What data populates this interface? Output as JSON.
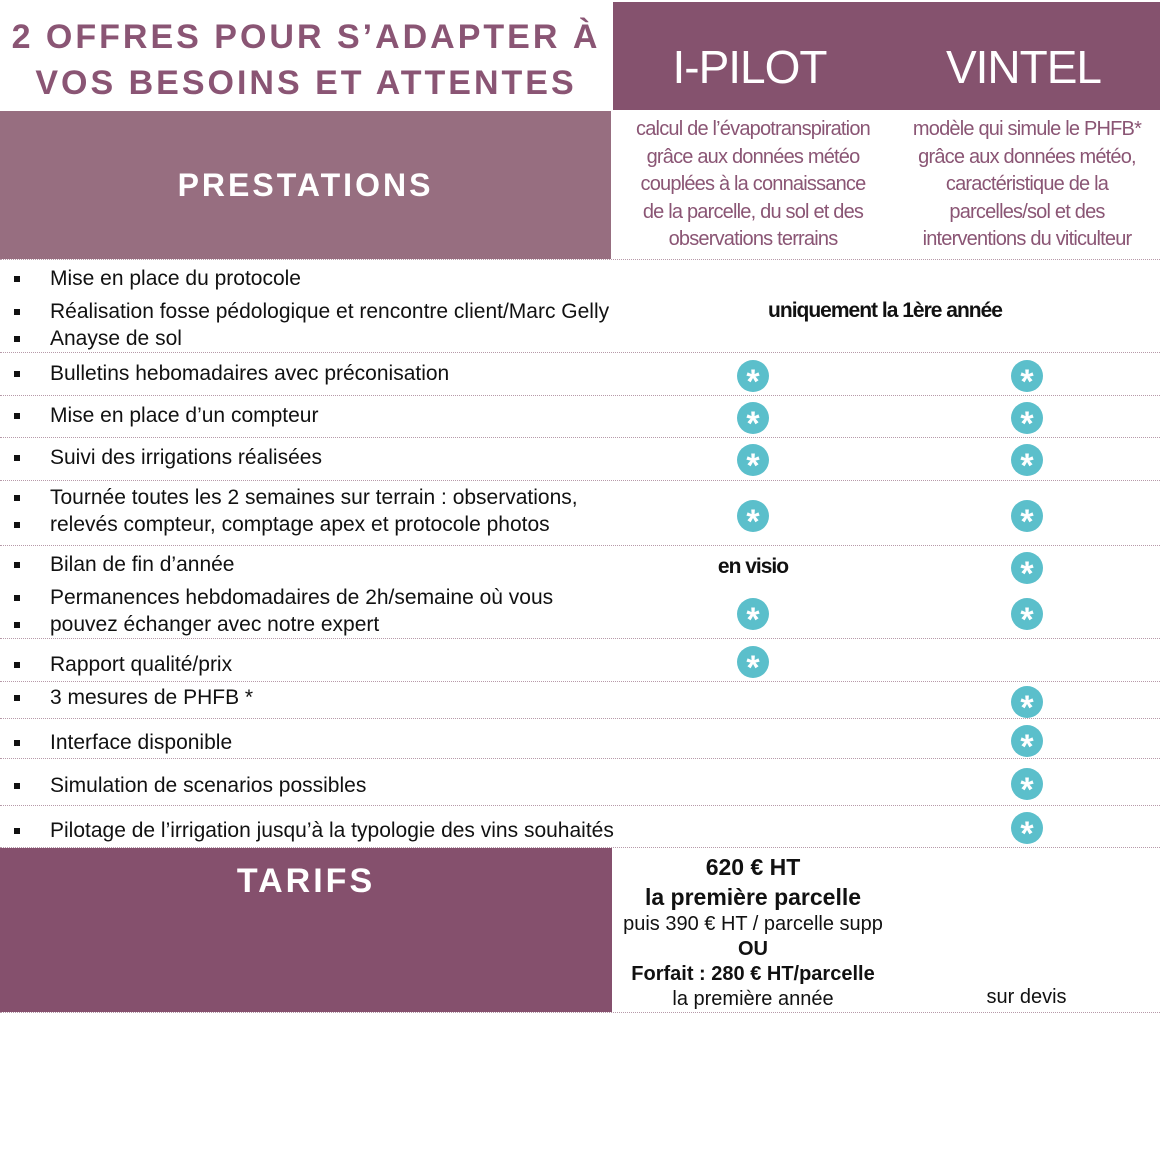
{
  "header": {
    "title_line1": "2 OFFRES POUR S’ADAPTER À",
    "title_line2": "VOS BESOINS ET ATTENTES",
    "prestations": "PRESTATIONS",
    "tarifs": "TARIFS"
  },
  "plans": [
    {
      "name": "I-PILOT",
      "description": [
        "calcul de l’évapotranspiration",
        "grâce aux données météo",
        "couplées à la connaissance",
        "de la parcelle, du sol et des",
        "observations terrains"
      ]
    },
    {
      "name": "VINTEL",
      "description": [
        "modèle qui simule le PHFB*",
        "grâce aux données météo,",
        "caractéristique de la",
        "parcelles/sol et des",
        "interventions du viticulteur"
      ]
    }
  ],
  "rows": [
    {
      "lines": [
        "Mise en place du protocole"
      ]
    },
    {
      "lines": [
        "Réalisation fosse pédologique et rencontre client/Marc Gelly"
      ]
    },
    {
      "lines": [
        "Anayse de sol"
      ]
    },
    {
      "lines": [
        "Bulletins hebomadaires avec préconisation"
      ],
      "ipilot": true,
      "vintel": true
    },
    {
      "lines": [
        "Mise en place d’un compteur"
      ],
      "ipilot": true,
      "vintel": true
    },
    {
      "lines": [
        "Suivi des irrigations réalisées"
      ],
      "ipilot": true,
      "vintel": true
    },
    {
      "lines": [
        "Tournée toutes les 2 semaines sur terrain : observations,",
        "relevés compteur, comptage apex et protocole photos"
      ],
      "ipilot": true,
      "vintel": true
    },
    {
      "lines": [
        "Bilan de fin d’année"
      ],
      "ipilot_text": "en visio",
      "vintel": true
    },
    {
      "lines": [
        "Permanences hebdomadaires de 2h/semaine où vous",
        "pouvez échanger avec notre expert"
      ],
      "ipilot": true,
      "vintel": true
    },
    {
      "lines": [
        "Rapport qualité/prix"
      ],
      "ipilot": true
    },
    {
      "lines": [
        "3 mesures de PHFB *"
      ],
      "vintel": true
    },
    {
      "lines": [
        "Interface disponible"
      ],
      "vintel": true
    },
    {
      "lines": [
        "Simulation de scenarios possibles"
      ],
      "vintel": true
    },
    {
      "lines": [
        "Pilotage de l’irrigation jusqu’à la typologie des vins souhaités"
      ],
      "vintel": true
    }
  ],
  "shared_note": "uniquement la 1ère année",
  "pricing": {
    "ipilot": {
      "line1": "620 € HT",
      "line2": "la première parcelle",
      "line3": "puis 390 € HT / parcelle supp",
      "line4": "OU",
      "line5": "Forfait : 280 € HT/parcelle",
      "line6": "la première année"
    },
    "vintel": "sur devis"
  },
  "colors": {
    "header": "#85526e",
    "prestations": "#976e80",
    "title": "#8a5574",
    "check": "#5bbfcb"
  },
  "icons": {
    "check": "teal-asterisk-circle"
  }
}
